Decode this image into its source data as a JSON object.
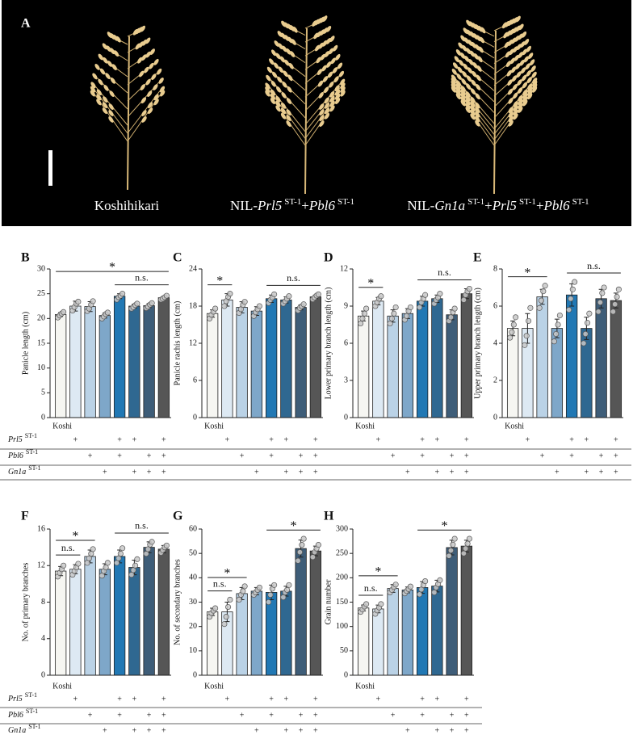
{
  "panel_a": {
    "label": "A",
    "captions": [
      [
        {
          "text": "Koshihikari"
        }
      ],
      [
        {
          "text": "NIL-"
        },
        {
          "text": "Prl5",
          "italic": true
        },
        {
          "text": "ST-1",
          "sup": true
        },
        {
          "text": "+"
        },
        {
          "text": "Pbl6",
          "italic": true
        },
        {
          "text": "ST-1",
          "sup": true
        }
      ],
      [
        {
          "text": "NIL-"
        },
        {
          "text": "Gn1a",
          "italic": true
        },
        {
          "text": "ST-1",
          "sup": true
        },
        {
          "text": "+"
        },
        {
          "text": "Prl5",
          "italic": true
        },
        {
          "text": "ST-1",
          "sup": true
        },
        {
          "text": "+"
        },
        {
          "text": "Pbl6",
          "italic": true
        },
        {
          "text": "ST-1",
          "sup": true
        }
      ]
    ]
  },
  "genotype_table": {
    "control": "Koshi",
    "rows": [
      {
        "gene": "Prl5",
        "allele": "ST-1",
        "marks": [
          null,
          "+",
          null,
          null,
          "+",
          "+",
          null,
          "+"
        ]
      },
      {
        "gene": "Pbl6",
        "allele": "ST-1",
        "marks": [
          null,
          null,
          "+",
          null,
          "+",
          null,
          "+",
          "+"
        ]
      },
      {
        "gene": "Gn1a",
        "allele": "ST-1",
        "marks": [
          null,
          null,
          null,
          "+",
          null,
          "+",
          "+",
          "+"
        ]
      }
    ]
  },
  "chart_data": [
    {
      "type": "bar",
      "panel": "B",
      "y_label": "Panicle length (cm)",
      "ylim": [
        0,
        30
      ],
      "yticks": [
        0,
        5,
        10,
        15,
        20,
        25,
        30
      ],
      "colors": [
        "#f6f6f2",
        "#dde9f3",
        "#bad2e6",
        "#7ea7c9",
        "#2178b4",
        "#2f6891",
        "#3e5d78",
        "#565656"
      ],
      "values": [
        20.8,
        22.5,
        22.4,
        20.6,
        24.5,
        22.5,
        22.6,
        24.2
      ],
      "errors": [
        0.4,
        1.0,
        1.0,
        0.5,
        0.5,
        0.4,
        0.4,
        0.3
      ],
      "points": [
        [
          20.2,
          20.6,
          21.0,
          21.3
        ],
        [
          21.6,
          22.3,
          23.0,
          23.4
        ],
        [
          21.5,
          22.0,
          22.8,
          23.5
        ],
        [
          20.0,
          20.4,
          20.9,
          21.2
        ],
        [
          23.8,
          24.3,
          24.6,
          25.0
        ],
        [
          22.0,
          22.3,
          22.7,
          23.0
        ],
        [
          22.1,
          22.4,
          22.8,
          23.1
        ],
        [
          23.8,
          24.0,
          24.3,
          24.6
        ]
      ],
      "annotations": [
        {
          "label": "n.s.",
          "span": [
            4,
            7
          ]
        },
        {
          "label": "*",
          "span": [
            0,
            7
          ]
        }
      ]
    },
    {
      "type": "bar",
      "panel": "C",
      "y_label": "Panicle rachis length (cm)",
      "ylim": [
        0,
        24
      ],
      "yticks": [
        0,
        6,
        12,
        18,
        24
      ],
      "colors": [
        "#f6f6f2",
        "#dde9f3",
        "#bad2e6",
        "#7ea7c9",
        "#2178b4",
        "#2f6891",
        "#3e5d78",
        "#565656"
      ],
      "values": [
        16.8,
        19.0,
        17.8,
        17.2,
        19.2,
        19.0,
        17.8,
        19.5
      ],
      "errors": [
        0.6,
        1.0,
        0.9,
        0.7,
        0.6,
        0.5,
        0.4,
        0.3
      ],
      "points": [
        [
          16.0,
          16.6,
          17.1,
          17.6
        ],
        [
          18.0,
          18.8,
          19.5,
          20.0
        ],
        [
          16.9,
          17.5,
          18.2,
          18.7
        ],
        [
          16.4,
          17.0,
          17.5,
          18.0
        ],
        [
          18.5,
          19.0,
          19.4,
          19.9
        ],
        [
          18.4,
          18.8,
          19.2,
          19.6
        ],
        [
          17.3,
          17.7,
          18.0,
          18.3
        ],
        [
          19.1,
          19.4,
          19.7,
          19.9
        ]
      ],
      "annotations": [
        {
          "label": "*",
          "span": [
            0,
            1
          ]
        },
        {
          "label": "n.s.",
          "span": [
            4,
            7
          ]
        }
      ]
    },
    {
      "type": "bar",
      "panel": "D",
      "y_label": "Lower primary branch length (cm)",
      "ylim": [
        0,
        12
      ],
      "yticks": [
        0,
        3,
        6,
        9,
        12
      ],
      "colors": [
        "#f6f6f2",
        "#dde9f3",
        "#bad2e6",
        "#7ea7c9",
        "#2178b4",
        "#2f6891",
        "#3e5d78",
        "#565656"
      ],
      "values": [
        8.2,
        9.4,
        8.2,
        8.4,
        9.4,
        9.6,
        8.3,
        10.0
      ],
      "errors": [
        0.4,
        0.3,
        0.5,
        0.4,
        0.4,
        0.3,
        0.4,
        0.4
      ],
      "points": [
        [
          7.6,
          8.0,
          8.4,
          8.8
        ],
        [
          9.0,
          9.3,
          9.6,
          9.8
        ],
        [
          7.6,
          8.0,
          8.4,
          8.9
        ],
        [
          7.9,
          8.2,
          8.6,
          8.9
        ],
        [
          8.9,
          9.3,
          9.6,
          9.9
        ],
        [
          9.2,
          9.5,
          9.7,
          10.0
        ],
        [
          7.8,
          8.1,
          8.5,
          8.8
        ],
        [
          9.5,
          9.9,
          10.2,
          10.4
        ]
      ],
      "annotations": [
        {
          "label": "*",
          "span": [
            0,
            1
          ]
        },
        {
          "label": "n.s.",
          "span": [
            4,
            7
          ]
        }
      ]
    },
    {
      "type": "bar",
      "panel": "E",
      "y_label": "Upper primary branch length (cm)",
      "ylim": [
        0,
        8
      ],
      "yticks": [
        0,
        2,
        4,
        6,
        8
      ],
      "colors": [
        "#f6f6f2",
        "#dde9f3",
        "#bad2e6",
        "#7ea7c9",
        "#2178b4",
        "#2f6891",
        "#3e5d78",
        "#565656"
      ],
      "values": [
        4.8,
        4.8,
        6.5,
        4.8,
        6.6,
        4.8,
        6.4,
        6.3
      ],
      "errors": [
        0.4,
        0.8,
        0.4,
        0.5,
        0.6,
        0.6,
        0.5,
        0.4
      ],
      "points": [
        [
          4.3,
          4.6,
          5.0,
          5.4
        ],
        [
          3.9,
          4.4,
          5.2,
          5.9
        ],
        [
          5.9,
          6.3,
          6.8,
          7.1
        ],
        [
          4.1,
          4.5,
          5.0,
          5.5
        ],
        [
          5.8,
          6.4,
          6.9,
          7.3
        ],
        [
          4.0,
          4.5,
          5.1,
          5.6
        ],
        [
          5.7,
          6.2,
          6.7,
          7.0
        ],
        [
          5.7,
          6.1,
          6.5,
          6.9
        ]
      ],
      "annotations": [
        {
          "label": "*",
          "span": [
            0,
            2
          ]
        },
        {
          "label": "n.s.",
          "span": [
            4,
            7
          ]
        }
      ]
    },
    {
      "type": "bar",
      "panel": "F",
      "y_label": "No. of primary branches",
      "ylim": [
        0,
        16
      ],
      "yticks": [
        0,
        4,
        8,
        12,
        16
      ],
      "colors": [
        "#f6f6f2",
        "#dde9f3",
        "#bad2e6",
        "#7ea7c9",
        "#2178b4",
        "#2f6891",
        "#3e5d78",
        "#565656"
      ],
      "values": [
        11.4,
        11.6,
        13.0,
        11.6,
        13.0,
        11.8,
        14.0,
        13.8
      ],
      "errors": [
        0.5,
        0.5,
        0.7,
        0.6,
        0.7,
        0.8,
        0.6,
        0.4
      ],
      "points": [
        [
          10.8,
          11.2,
          11.6,
          12.0
        ],
        [
          11.0,
          11.4,
          11.8,
          12.2
        ],
        [
          12.3,
          12.8,
          13.3,
          13.8
        ],
        [
          10.9,
          11.4,
          11.8,
          12.3
        ],
        [
          12.3,
          12.8,
          13.3,
          13.9
        ],
        [
          11.0,
          11.5,
          12.0,
          12.7
        ],
        [
          13.3,
          13.8,
          14.3,
          14.6
        ],
        [
          13.4,
          13.7,
          14.0,
          14.2
        ]
      ],
      "annotations": [
        {
          "label": "n.s.",
          "span": [
            0,
            1
          ]
        },
        {
          "label": "*",
          "span": [
            0,
            2
          ]
        },
        {
          "label": "n.s.",
          "span": [
            4,
            7
          ]
        }
      ]
    },
    {
      "type": "bar",
      "panel": "G",
      "y_label": "No. of secondary branches",
      "ylim": [
        0,
        60
      ],
      "yticks": [
        0,
        10,
        20,
        30,
        40,
        50,
        60
      ],
      "colors": [
        "#f6f6f2",
        "#dde9f3",
        "#bad2e6",
        "#7ea7c9",
        "#2178b4",
        "#2f6891",
        "#3e5d78",
        "#565656"
      ],
      "values": [
        26,
        26,
        33.5,
        34.5,
        34,
        34.5,
        52,
        51
      ],
      "errors": [
        1.5,
        4,
        2.5,
        1.5,
        3,
        2,
        3.5,
        2
      ],
      "points": [
        [
          24,
          25.5,
          26.5,
          27.5
        ],
        [
          21,
          24,
          28,
          31
        ],
        [
          31,
          33,
          34.5,
          36.5
        ],
        [
          33,
          34,
          35,
          36
        ],
        [
          30,
          33,
          35.5,
          37
        ],
        [
          32,
          34,
          35,
          37
        ],
        [
          47,
          50.5,
          53.5,
          56
        ],
        [
          48.5,
          50.5,
          52,
          53.5
        ]
      ],
      "annotations": [
        {
          "label": "n.s.",
          "span": [
            0,
            1
          ]
        },
        {
          "label": "*",
          "span": [
            0,
            2
          ]
        },
        {
          "label": "*",
          "span": [
            4,
            7
          ]
        }
      ]
    },
    {
      "type": "bar",
      "panel": "H",
      "y_label": "Grain number",
      "ylim": [
        0,
        300
      ],
      "yticks": [
        0,
        50,
        100,
        150,
        200,
        250,
        300
      ],
      "colors": [
        "#f6f6f2",
        "#dde9f3",
        "#bad2e6",
        "#7ea7c9",
        "#2178b4",
        "#2f6891",
        "#3e5d78",
        "#565656"
      ],
      "values": [
        138,
        136,
        178,
        175,
        180,
        183,
        262,
        265
      ],
      "errors": [
        6,
        8,
        8,
        6,
        12,
        12,
        15,
        12
      ],
      "points": [
        [
          130,
          135,
          141,
          146
        ],
        [
          126,
          133,
          139,
          146
        ],
        [
          170,
          175,
          181,
          186
        ],
        [
          168,
          173,
          177,
          182
        ],
        [
          166,
          176,
          185,
          193
        ],
        [
          170,
          180,
          187,
          195
        ],
        [
          245,
          256,
          268,
          280
        ],
        [
          250,
          260,
          270,
          280
        ]
      ],
      "annotations": [
        {
          "label": "n.s.",
          "span": [
            0,
            1
          ]
        },
        {
          "label": "*",
          "span": [
            0,
            2
          ]
        },
        {
          "label": "*",
          "span": [
            4,
            7
          ]
        }
      ]
    }
  ]
}
